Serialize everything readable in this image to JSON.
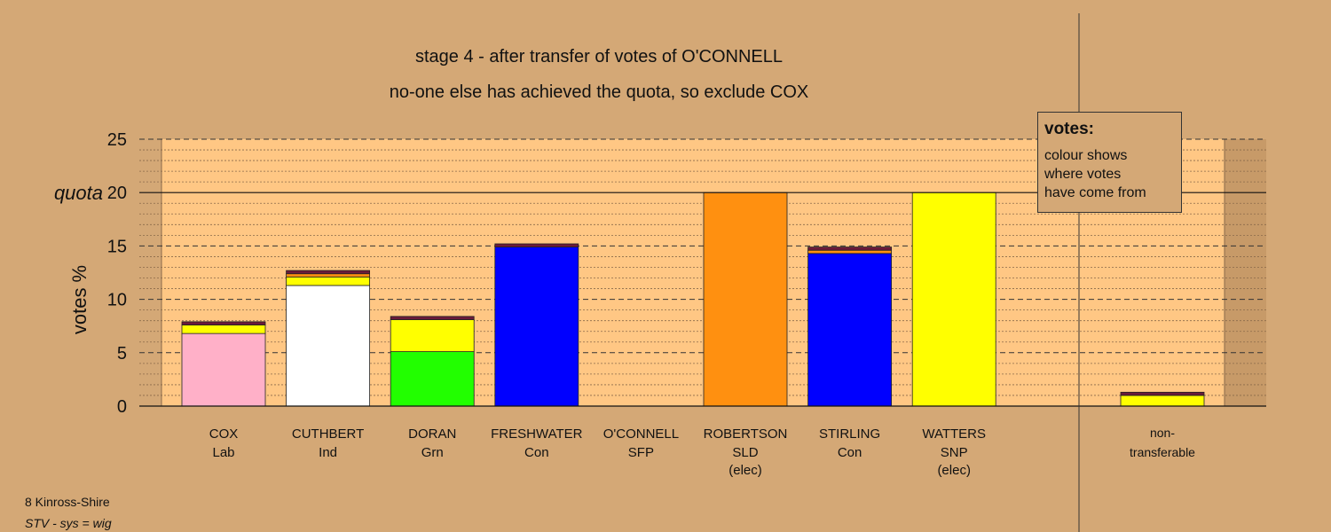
{
  "header": {
    "title": "stage 4 - after transfer of votes of O'CONNELL",
    "subtitle": "no-one else has achieved the quota, so exclude COX"
  },
  "legend": {
    "title": "votes:",
    "lines": [
      "colour shows",
      "where votes",
      "have come from"
    ]
  },
  "footer": {
    "line1": "8 Kinross-Shire",
    "line2": "STV - sys = wig"
  },
  "colors": {
    "background": "#D4A876",
    "plot_band": "#FFC784",
    "Lab": "#FFB0C8",
    "Ind": "#FFFFFF",
    "Grn": "#22FF00",
    "Con": "#0000FF",
    "SLD": "#FF9010",
    "SNP": "#FFFF00",
    "SFP": "#6B1A3A"
  },
  "chart_data": {
    "type": "bar",
    "stacked": true,
    "ylabel": "votes %",
    "ylim": [
      0,
      25
    ],
    "yticks": [
      0,
      5,
      10,
      15,
      20,
      25
    ],
    "quota": {
      "label": "quota",
      "value": 20
    },
    "grid": true,
    "legend_position": "top-right",
    "candidates": [
      {
        "name": "COX",
        "party": "Lab",
        "note": "",
        "segments": [
          {
            "from": "Lab",
            "value": 6.8
          },
          {
            "from": "SNP",
            "value": 0.8
          },
          {
            "from": "SFP",
            "value": 0.3
          }
        ]
      },
      {
        "name": "CUTHBERT",
        "party": "Ind",
        "note": "",
        "segments": [
          {
            "from": "Ind",
            "value": 11.3
          },
          {
            "from": "SNP",
            "value": 0.8
          },
          {
            "from": "SLD",
            "value": 0.3
          },
          {
            "from": "SFP",
            "value": 0.3
          }
        ]
      },
      {
        "name": "DORAN",
        "party": "Grn",
        "note": "",
        "segments": [
          {
            "from": "Grn",
            "value": 5.1
          },
          {
            "from": "SNP",
            "value": 3.0
          },
          {
            "from": "SFP",
            "value": 0.3
          }
        ]
      },
      {
        "name": "FRESHWATER",
        "party": "Con",
        "note": "",
        "segments": [
          {
            "from": "Con",
            "value": 14.9
          },
          {
            "from": "SFP",
            "value": 0.3
          }
        ]
      },
      {
        "name": "O'CONNELL",
        "party": "SFP",
        "note": "",
        "segments": []
      },
      {
        "name": "ROBERTSON",
        "party": "SLD",
        "note": "(elec)",
        "segments": [
          {
            "from": "SLD",
            "value": 20.0
          }
        ]
      },
      {
        "name": "STIRLING",
        "party": "Con",
        "note": "",
        "segments": [
          {
            "from": "Con",
            "value": 14.3
          },
          {
            "from": "SLD",
            "value": 0.3
          },
          {
            "from": "SFP",
            "value": 0.3
          }
        ]
      },
      {
        "name": "WATTERS",
        "party": "SNP",
        "note": "(elec)",
        "segments": [
          {
            "from": "SNP",
            "value": 20.0
          }
        ]
      }
    ],
    "non_transferable": {
      "label_line1": "non-",
      "label_line2": "transferable",
      "segments": [
        {
          "from": "SNP",
          "value": 1.0
        },
        {
          "from": "SFP",
          "value": 0.3
        }
      ]
    }
  }
}
